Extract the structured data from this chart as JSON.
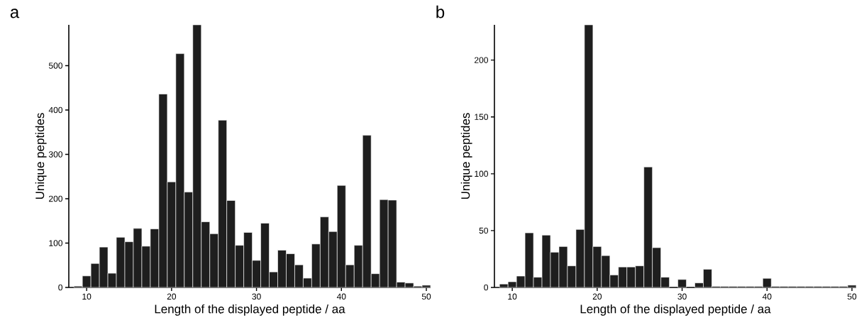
{
  "chart_data": [
    {
      "type": "histogram",
      "title": "a",
      "xlabel": "Length of the displayed peptide / aa",
      "ylabel": "Unique peptides",
      "color": "#1e1e1e",
      "bins": [
        8.5,
        9.5,
        10.5,
        11.5,
        12.5,
        13.5,
        14.5,
        15.5,
        16.5,
        17.5,
        18.5,
        19.5,
        20.5,
        21.5,
        22.5,
        23.5,
        24.5,
        25.5,
        26.5,
        27.5,
        28.5,
        29.5,
        30.5,
        31.5,
        32.5,
        33.5,
        34.5,
        35.5,
        36.5,
        37.5,
        38.5,
        39.5,
        40.5,
        41.5,
        42.5,
        43.5,
        44.5,
        45.5,
        46.5,
        47.5,
        48.5,
        49.5,
        50.5
      ],
      "values": [
        3,
        26,
        54,
        91,
        32,
        113,
        103,
        133,
        93,
        132,
        436,
        238,
        527,
        215,
        592,
        148,
        121,
        377,
        196,
        95,
        124,
        61,
        145,
        35,
        84,
        76,
        51,
        21,
        98,
        159,
        126,
        230,
        51,
        95,
        343,
        31,
        198,
        197,
        12,
        10,
        3,
        5
      ],
      "xlim": [
        7.9,
        50.5
      ],
      "ylim": [
        0,
        592
      ],
      "xticks": [
        10,
        20,
        30,
        40,
        50
      ],
      "yticks": [
        0,
        100,
        200,
        300,
        400,
        500
      ]
    },
    {
      "type": "histogram",
      "title": "b",
      "xlabel": "Length of the displayed peptide / aa",
      "ylabel": "Unique peptides",
      "color": "#1e1e1e",
      "bins": [
        8.5,
        9.5,
        10.5,
        11.5,
        12.5,
        13.5,
        14.5,
        15.5,
        16.5,
        17.5,
        18.5,
        19.5,
        20.5,
        21.5,
        22.5,
        23.5,
        24.5,
        25.5,
        26.5,
        27.5,
        28.5,
        29.5,
        30.5,
        31.5,
        32.5,
        33.5,
        34.5,
        35.5,
        36.5,
        37.5,
        38.5,
        39.5,
        40.5,
        41.5,
        42.5,
        43.5,
        44.5,
        45.5,
        46.5,
        47.5,
        48.5,
        49.5,
        50.5
      ],
      "values": [
        3,
        5,
        10,
        48,
        9,
        46,
        31,
        36,
        19,
        51,
        231,
        36,
        28,
        11,
        18,
        18,
        19,
        106,
        35,
        9,
        0,
        7,
        0,
        4,
        16,
        1,
        1,
        1,
        1,
        1,
        1,
        8,
        1,
        1,
        1,
        1,
        1,
        1,
        1,
        1,
        1,
        2
      ],
      "xlim": [
        7.9,
        50.5
      ],
      "ylim": [
        0,
        231
      ],
      "xticks": [
        10,
        20,
        30,
        40,
        50
      ],
      "yticks": [
        0,
        50,
        100,
        150,
        200
      ]
    }
  ]
}
